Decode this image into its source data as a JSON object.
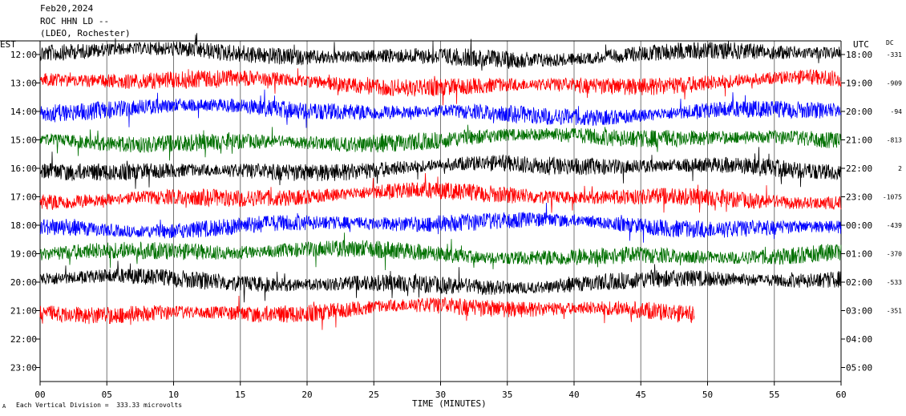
{
  "header": {
    "date": "Feb20,2024",
    "station": "ROC HHN LD --",
    "network": "(LDEO, Rochester)"
  },
  "labels": {
    "left_tz": "EST",
    "right_tz": "UTC",
    "dc_header": "DC",
    "xaxis_title": "TIME (MINUTES)",
    "scale_note": "Each Vertical Division =  333.33 microvolts",
    "corner_mark": "A"
  },
  "chart_data": {
    "type": "line",
    "title": "ROC HHN LD --",
    "xlabel": "TIME (MINUTES)",
    "ylabel": "",
    "xlim": [
      0,
      60
    ],
    "x_ticks": [
      "00",
      "05",
      "10",
      "15",
      "20",
      "25",
      "30",
      "35",
      "40",
      "45",
      "50",
      "55",
      "60"
    ],
    "left_hour_labels": [
      "12:00",
      "13:00",
      "14:00",
      "15:00",
      "16:00",
      "17:00",
      "18:00",
      "19:00",
      "20:00",
      "21:00",
      "22:00",
      "23:00"
    ],
    "right_hour_labels": [
      "18:00",
      "19:00",
      "20:00",
      "21:00",
      "22:00",
      "23:00",
      "00:00",
      "01:00",
      "02:00",
      "03:00",
      "04:00",
      "05:00"
    ],
    "grid": "vertical every 5 minutes",
    "trace_colors": [
      "#000000",
      "#ff0000",
      "#0000ff",
      "#007000"
    ],
    "series": [
      {
        "hour_est": "12:00",
        "hour_utc": "18:00",
        "dc": "-331",
        "color": "#000000",
        "minutes": 60
      },
      {
        "hour_est": "13:00",
        "hour_utc": "19:00",
        "dc": "-909",
        "color": "#ff0000",
        "minutes": 60
      },
      {
        "hour_est": "14:00",
        "hour_utc": "20:00",
        "dc": "-94",
        "color": "#0000ff",
        "minutes": 60
      },
      {
        "hour_est": "15:00",
        "hour_utc": "21:00",
        "dc": "-813",
        "color": "#007000",
        "minutes": 60
      },
      {
        "hour_est": "16:00",
        "hour_utc": "22:00",
        "dc": "2",
        "color": "#000000",
        "minutes": 60
      },
      {
        "hour_est": "17:00",
        "hour_utc": "23:00",
        "dc": "-1075",
        "color": "#ff0000",
        "minutes": 60
      },
      {
        "hour_est": "18:00",
        "hour_utc": "00:00",
        "dc": "-439",
        "color": "#0000ff",
        "minutes": 60
      },
      {
        "hour_est": "19:00",
        "hour_utc": "01:00",
        "dc": "-370",
        "color": "#007000",
        "minutes": 60
      },
      {
        "hour_est": "20:00",
        "hour_utc": "02:00",
        "dc": "-533",
        "color": "#000000",
        "minutes": 60
      },
      {
        "hour_est": "21:00",
        "hour_utc": "03:00",
        "dc": "-351",
        "color": "#ff0000",
        "minutes": 49
      },
      {
        "hour_est": "22:00",
        "hour_utc": "04:00",
        "dc": "",
        "color": "",
        "minutes": 0
      },
      {
        "hour_est": "23:00",
        "hour_utc": "05:00",
        "dc": "",
        "color": "",
        "minutes": 0
      }
    ]
  }
}
